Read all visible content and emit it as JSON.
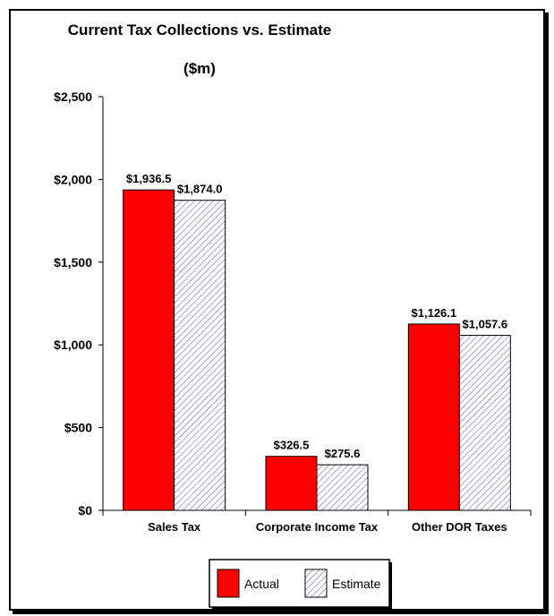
{
  "chart_data": {
    "type": "bar",
    "title": "Current Tax Collections vs. Estimate",
    "subtitle": "($m)",
    "categories": [
      "Sales Tax",
      "Corporate Income Tax",
      "Other DOR Taxes"
    ],
    "series": [
      {
        "name": "Actual",
        "values": [
          1936.5,
          326.5,
          1126.1
        ],
        "labels": [
          "$1,936.5",
          "$326.5",
          "$1,126.1"
        ],
        "color": "#ff0000"
      },
      {
        "name": "Estimate",
        "values": [
          1874.0,
          275.6,
          1057.6
        ],
        "labels": [
          "$1,874.0",
          "$275.6",
          "$1,057.6"
        ],
        "color": "#9aa0d8",
        "pattern": "diagonal-hatch"
      }
    ],
    "ylim": [
      0,
      2500
    ],
    "yticks": [
      0,
      500,
      1000,
      1500,
      2000,
      2500
    ],
    "ytick_labels": [
      "$0",
      "$500",
      "$1,000",
      "$1,500",
      "$2,000",
      "$2,500"
    ],
    "grid": false,
    "legend_position": "bottom-center"
  }
}
